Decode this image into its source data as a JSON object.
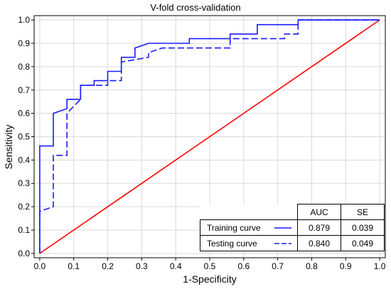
{
  "chart_data": {
    "type": "line",
    "title": "V-fold cross-validation",
    "xlabel": "1-Specificity",
    "ylabel": "Sensitivity",
    "xlim": [
      0,
      1
    ],
    "ylim": [
      0,
      1
    ],
    "xticks": [
      "0.0",
      "0.1",
      "0.2",
      "0.3",
      "0.4",
      "0.5",
      "0.6",
      "0.7",
      "0.8",
      "0.9",
      "1.0"
    ],
    "yticks": [
      "0.0",
      "0.1",
      "0.2",
      "0.3",
      "0.4",
      "0.5",
      "0.6",
      "0.7",
      "0.8",
      "0.9",
      "1.0"
    ],
    "grid": true,
    "series": [
      {
        "name": "Training curve",
        "style": "solid",
        "color": "#1a1aff",
        "x": [
          0,
          0,
          0.04,
          0.04,
          0.08,
          0.08,
          0.12,
          0.12,
          0.16,
          0.16,
          0.2,
          0.2,
          0.24,
          0.24,
          0.28,
          0.28,
          0.32,
          0.44,
          0.44,
          0.56,
          0.56,
          0.64,
          0.64,
          0.76,
          0.76,
          1.0
        ],
        "y": [
          0,
          0.46,
          0.46,
          0.6,
          0.62,
          0.66,
          0.66,
          0.72,
          0.72,
          0.74,
          0.74,
          0.78,
          0.78,
          0.84,
          0.84,
          0.88,
          0.9,
          0.9,
          0.92,
          0.92,
          0.94,
          0.94,
          0.98,
          0.98,
          1.0,
          1.0
        ]
      },
      {
        "name": "Testing curve",
        "style": "dashed",
        "color": "#1a1aff",
        "x": [
          0,
          0,
          0.04,
          0.04,
          0.06,
          0.08,
          0.08,
          0.12,
          0.12,
          0.2,
          0.2,
          0.24,
          0.24,
          0.32,
          0.32,
          0.36,
          0.56,
          0.56,
          0.72,
          0.72,
          0.76,
          0.76,
          1.0
        ],
        "y": [
          0,
          0.18,
          0.2,
          0.42,
          0.42,
          0.42,
          0.6,
          0.66,
          0.72,
          0.72,
          0.74,
          0.74,
          0.82,
          0.84,
          0.86,
          0.88,
          0.88,
          0.92,
          0.92,
          0.94,
          0.94,
          1.0,
          1.0
        ]
      },
      {
        "name": "",
        "style": "solid",
        "color": "#ff0000",
        "x": [
          0,
          1
        ],
        "y": [
          0,
          1
        ]
      }
    ],
    "table": {
      "headers": [
        "AUC",
        "SE"
      ],
      "rows": [
        {
          "label": "Training curve",
          "auc": "0.879",
          "se": "0.039",
          "style": "solid"
        },
        {
          "label": "Testing curve",
          "auc": "0.840",
          "se": "0.049",
          "style": "dashed"
        }
      ]
    }
  }
}
